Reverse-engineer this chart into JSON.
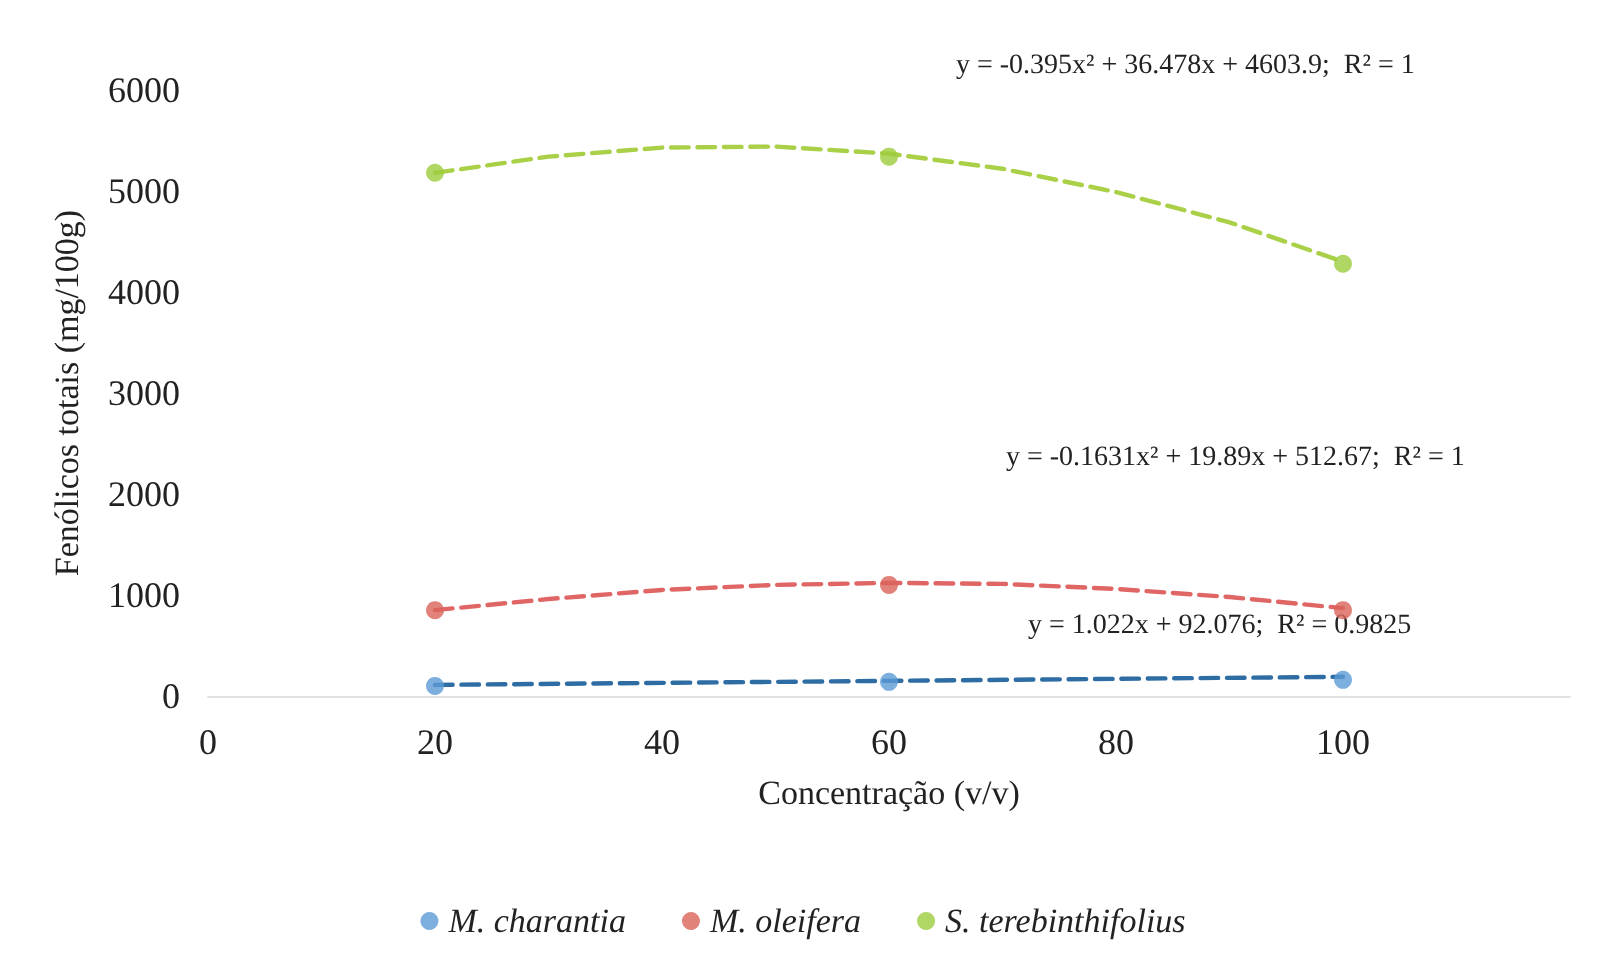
{
  "chart_data": {
    "type": "scatter",
    "xlabel": "Concentração (v/v)",
    "ylabel": "Fenólicos totais (mg/100g)",
    "xlim": [
      0,
      120
    ],
    "xticks": [
      0,
      20,
      40,
      60,
      80,
      100
    ],
    "ylim": [
      0,
      6000
    ],
    "yticks": [
      0,
      1000,
      2000,
      3000,
      4000,
      5000,
      6000
    ],
    "grid": false,
    "legend": "bottom",
    "marker": "circle",
    "series": [
      {
        "name": "M. charantia",
        "color": "#5b9bd5",
        "x": [
          20,
          60,
          100
        ],
        "values": [
          100,
          140,
          160
        ]
      },
      {
        "name": "M. oleifera",
        "color": "#d9645a",
        "x": [
          20,
          60,
          100
        ],
        "values": [
          850,
          1100,
          850
        ]
      },
      {
        "name": "S. terebinthifolius",
        "color": "#9ccc3c",
        "x": [
          20,
          60,
          100
        ],
        "values": [
          5180,
          5340,
          4280
        ]
      },
      {
        "type": "line",
        "color": "#2e6ca4",
        "line_style": "dashed",
        "marker": "none",
        "x": [
          20,
          100
        ],
        "values": [
          110,
          190
        ]
      },
      {
        "type": "line",
        "color": "#e06666",
        "line_style": "dashed",
        "marker": "none",
        "x": [
          20,
          30,
          40,
          50,
          60,
          70,
          80,
          90,
          100
        ],
        "values": [
          850,
          960,
          1050,
          1100,
          1120,
          1110,
          1060,
          980,
          870
        ]
      },
      {
        "type": "line",
        "color": "#a9d046",
        "line_style": "dashed",
        "marker": "none",
        "x": [
          20,
          30,
          40,
          50,
          60,
          70,
          80,
          90,
          100
        ],
        "values": [
          5180,
          5340,
          5430,
          5440,
          5370,
          5220,
          4990,
          4690,
          4300
        ]
      }
    ],
    "annotations": [
      "y = -0.395x² + 36.478x + 4603.9;  R² = 1",
      "y = -0.1631x² + 19.89x + 512.67;  R² = 1",
      "y = 1.022x + 92.076;  R² = 0.9825"
    ]
  }
}
